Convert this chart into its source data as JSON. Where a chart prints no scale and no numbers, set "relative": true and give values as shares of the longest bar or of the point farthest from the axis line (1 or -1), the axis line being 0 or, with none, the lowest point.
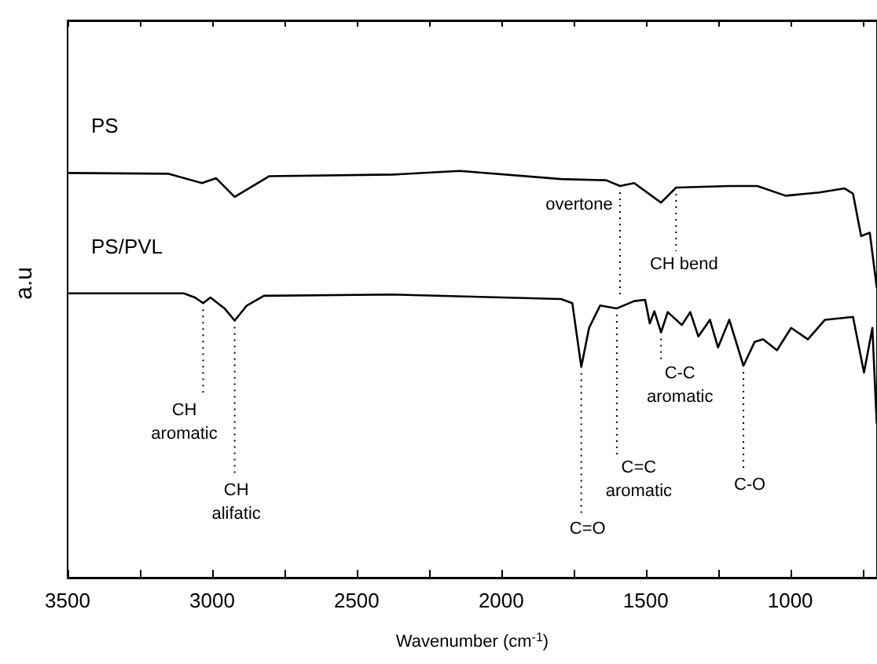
{
  "chart_data": {
    "type": "line",
    "xlabel": "Wavenumber (cm$^{-1}$)",
    "ylabel": "a.u",
    "relative": true,
    "marker": "none",
    "line_style": "solid",
    "xlim": [
      3500,
      700
    ],
    "xticks": [
      3500,
      3000,
      2500,
      2000,
      1500,
      1000
    ],
    "series": [
      {
        "name": "PS",
        "color": "#000000",
        "x": [
          3500,
          3150,
          3035,
          2986,
          2922,
          2802,
          2375,
          2143,
          1793,
          1637,
          1589,
          1540,
          1447,
          1395,
          1211,
          1114,
          1016,
          900,
          812,
          783,
          755,
          725,
          701
        ],
        "values": [
          0.995,
          0.993,
          0.97,
          0.982,
          0.936,
          0.987,
          0.991,
          1,
          0.98,
          0.977,
          0.963,
          0.97,
          0.922,
          0.959,
          0.963,
          0.963,
          0.939,
          0.947,
          0.957,
          0.944,
          0.84,
          0.848,
          0.714
        ]
      },
      {
        "name": "PS/PVL",
        "color": "#000000",
        "x": [
          3500,
          3098,
          3060,
          3031,
          3006,
          2957,
          2922,
          2880,
          2821,
          2375,
          1793,
          1754,
          1723,
          1696,
          1658,
          1600,
          1540,
          1502,
          1486,
          1470,
          1447,
          1424,
          1375,
          1346,
          1318,
          1278,
          1250,
          1211,
          1162,
          1123,
          1094,
          1046,
          997,
          939,
          880,
          783,
          745,
          716,
          701
        ],
        "values": [
          0.699,
          0.699,
          0.689,
          0.675,
          0.689,
          0.662,
          0.632,
          0.669,
          0.693,
          0.696,
          0.685,
          0.675,
          0.518,
          0.614,
          0.669,
          0.662,
          0.68,
          0.683,
          0.625,
          0.655,
          0.603,
          0.653,
          0.621,
          0.653,
          0.593,
          0.634,
          0.566,
          0.634,
          0.521,
          0.58,
          0.586,
          0.559,
          0.614,
          0.586,
          0.634,
          0.641,
          0.504,
          0.614,
          0.38
        ]
      }
    ],
    "annotations": [
      {
        "text": "overtone",
        "x": 1589,
        "y": 0.963
      },
      {
        "text": "CH bend",
        "x": 1395,
        "y": 0.959
      },
      {
        "text": "CH\naromatic",
        "x": 3031,
        "y": 0.675
      },
      {
        "text": "CH\nalifatic",
        "x": 2922,
        "y": 0.632
      },
      {
        "text": "C-C\naromatic",
        "x": 1447,
        "y": 0.603
      },
      {
        "text": "C=C\naromatic",
        "x": 1600,
        "y": 0.662
      },
      {
        "text": "C=O",
        "x": 1723,
        "y": 0.518
      },
      {
        "text": "C-O",
        "x": 1162,
        "y": 0.521
      }
    ]
  }
}
